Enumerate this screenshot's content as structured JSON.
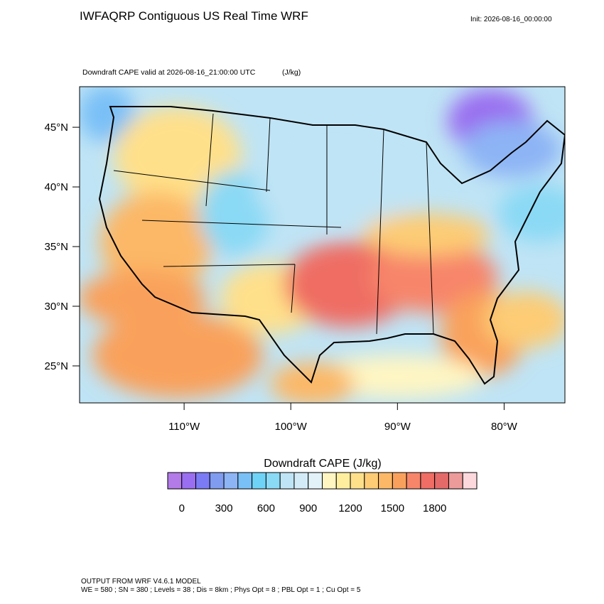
{
  "header": {
    "title": "IWFAQRP Contiguous US Real Time WRF",
    "init": "Init: 2026-08-16_00:00:00",
    "subtitle": "Downdraft CAPE valid at 2026-08-16_21:00:00 UTC",
    "units": "(J/kg)"
  },
  "map": {
    "type": "map",
    "xlim": [
      -119.8,
      -74.3
    ],
    "ylim": [
      21.9,
      48.4
    ],
    "xticks": [
      {
        "value": -110,
        "label": "110°W"
      },
      {
        "value": -100,
        "label": "100°W"
      },
      {
        "value": -90,
        "label": "90°W"
      },
      {
        "value": -80,
        "label": "80°W"
      }
    ],
    "yticks": [
      {
        "value": 25,
        "label": "25°N"
      },
      {
        "value": 30,
        "label": "30°N"
      },
      {
        "value": 35,
        "label": "35°N"
      },
      {
        "value": 40,
        "label": "40°N"
      },
      {
        "value": 45,
        "label": "45°N"
      }
    ]
  },
  "colorbar": {
    "title": "Downdraft CAPE  (J/kg)",
    "levels": [
      0,
      100,
      200,
      300,
      400,
      500,
      600,
      700,
      800,
      900,
      1000,
      1100,
      1200,
      1300,
      1400,
      1500,
      1600,
      1700,
      1800,
      1900,
      2000
    ],
    "ticks": [
      0,
      300,
      600,
      900,
      1200,
      1500,
      1800
    ],
    "colors": [
      "#b27be8",
      "#9a6ef0",
      "#7b7bf5",
      "#7f9cf0",
      "#8db4f5",
      "#79c0f7",
      "#6fd3f7",
      "#8ad9f5",
      "#bfe4f5",
      "#d3ebf7",
      "#e2f2f8",
      "#fff6c2",
      "#ffee9e",
      "#ffe08a",
      "#fdcc74",
      "#fcb866",
      "#f9a15c",
      "#f7856a",
      "#ef6d64",
      "#e46a6a",
      "#ec9a9a",
      "#fcd8dc"
    ]
  },
  "footer": {
    "line1": "OUTPUT FROM WRF V4.6.1 MODEL",
    "line2": "WE = 580 ; SN = 380 ; Levels = 38 ; Dis = 8km ; Phys Opt = 8 ; PBL Opt = 1 ; Cu Opt = 5"
  }
}
